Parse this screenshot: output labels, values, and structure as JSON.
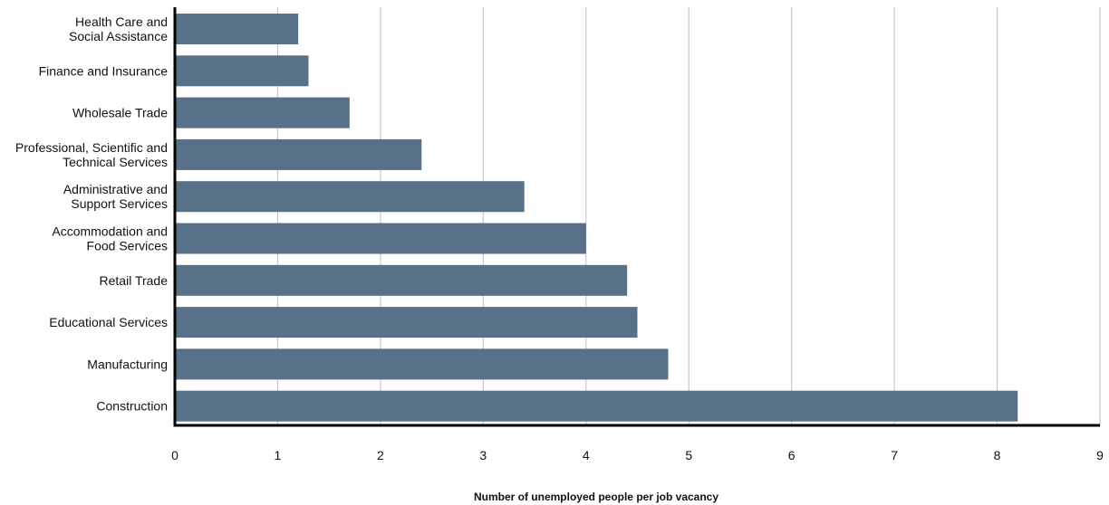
{
  "chart_data": {
    "type": "bar",
    "orientation": "horizontal",
    "categories": [
      [
        "Health Care and",
        "Social Assistance"
      ],
      [
        "Finance and Insurance"
      ],
      [
        "Wholesale Trade"
      ],
      [
        "Professional, Scientific and",
        "Technical Services"
      ],
      [
        "Administrative and",
        "Support Services"
      ],
      [
        "Accommodation and",
        "Food Services"
      ],
      [
        "Retail Trade"
      ],
      [
        "Educational Services"
      ],
      [
        "Manufacturing"
      ],
      [
        "Construction"
      ]
    ],
    "values": [
      1.2,
      1.3,
      1.7,
      2.4,
      3.4,
      4.0,
      4.4,
      4.5,
      4.8,
      8.2
    ],
    "xlabel": "Number of unemployed people per job vacancy",
    "ylabel": "",
    "xlim": [
      0,
      9
    ],
    "xticks": [
      "0",
      "1",
      "2",
      "3",
      "4",
      "5",
      "6",
      "7",
      "8",
      "9"
    ],
    "grid": "vertical",
    "legend": "none",
    "colors": {
      "bar": "#587088",
      "grid": "#c8c8c8",
      "axis": "#000000"
    }
  }
}
